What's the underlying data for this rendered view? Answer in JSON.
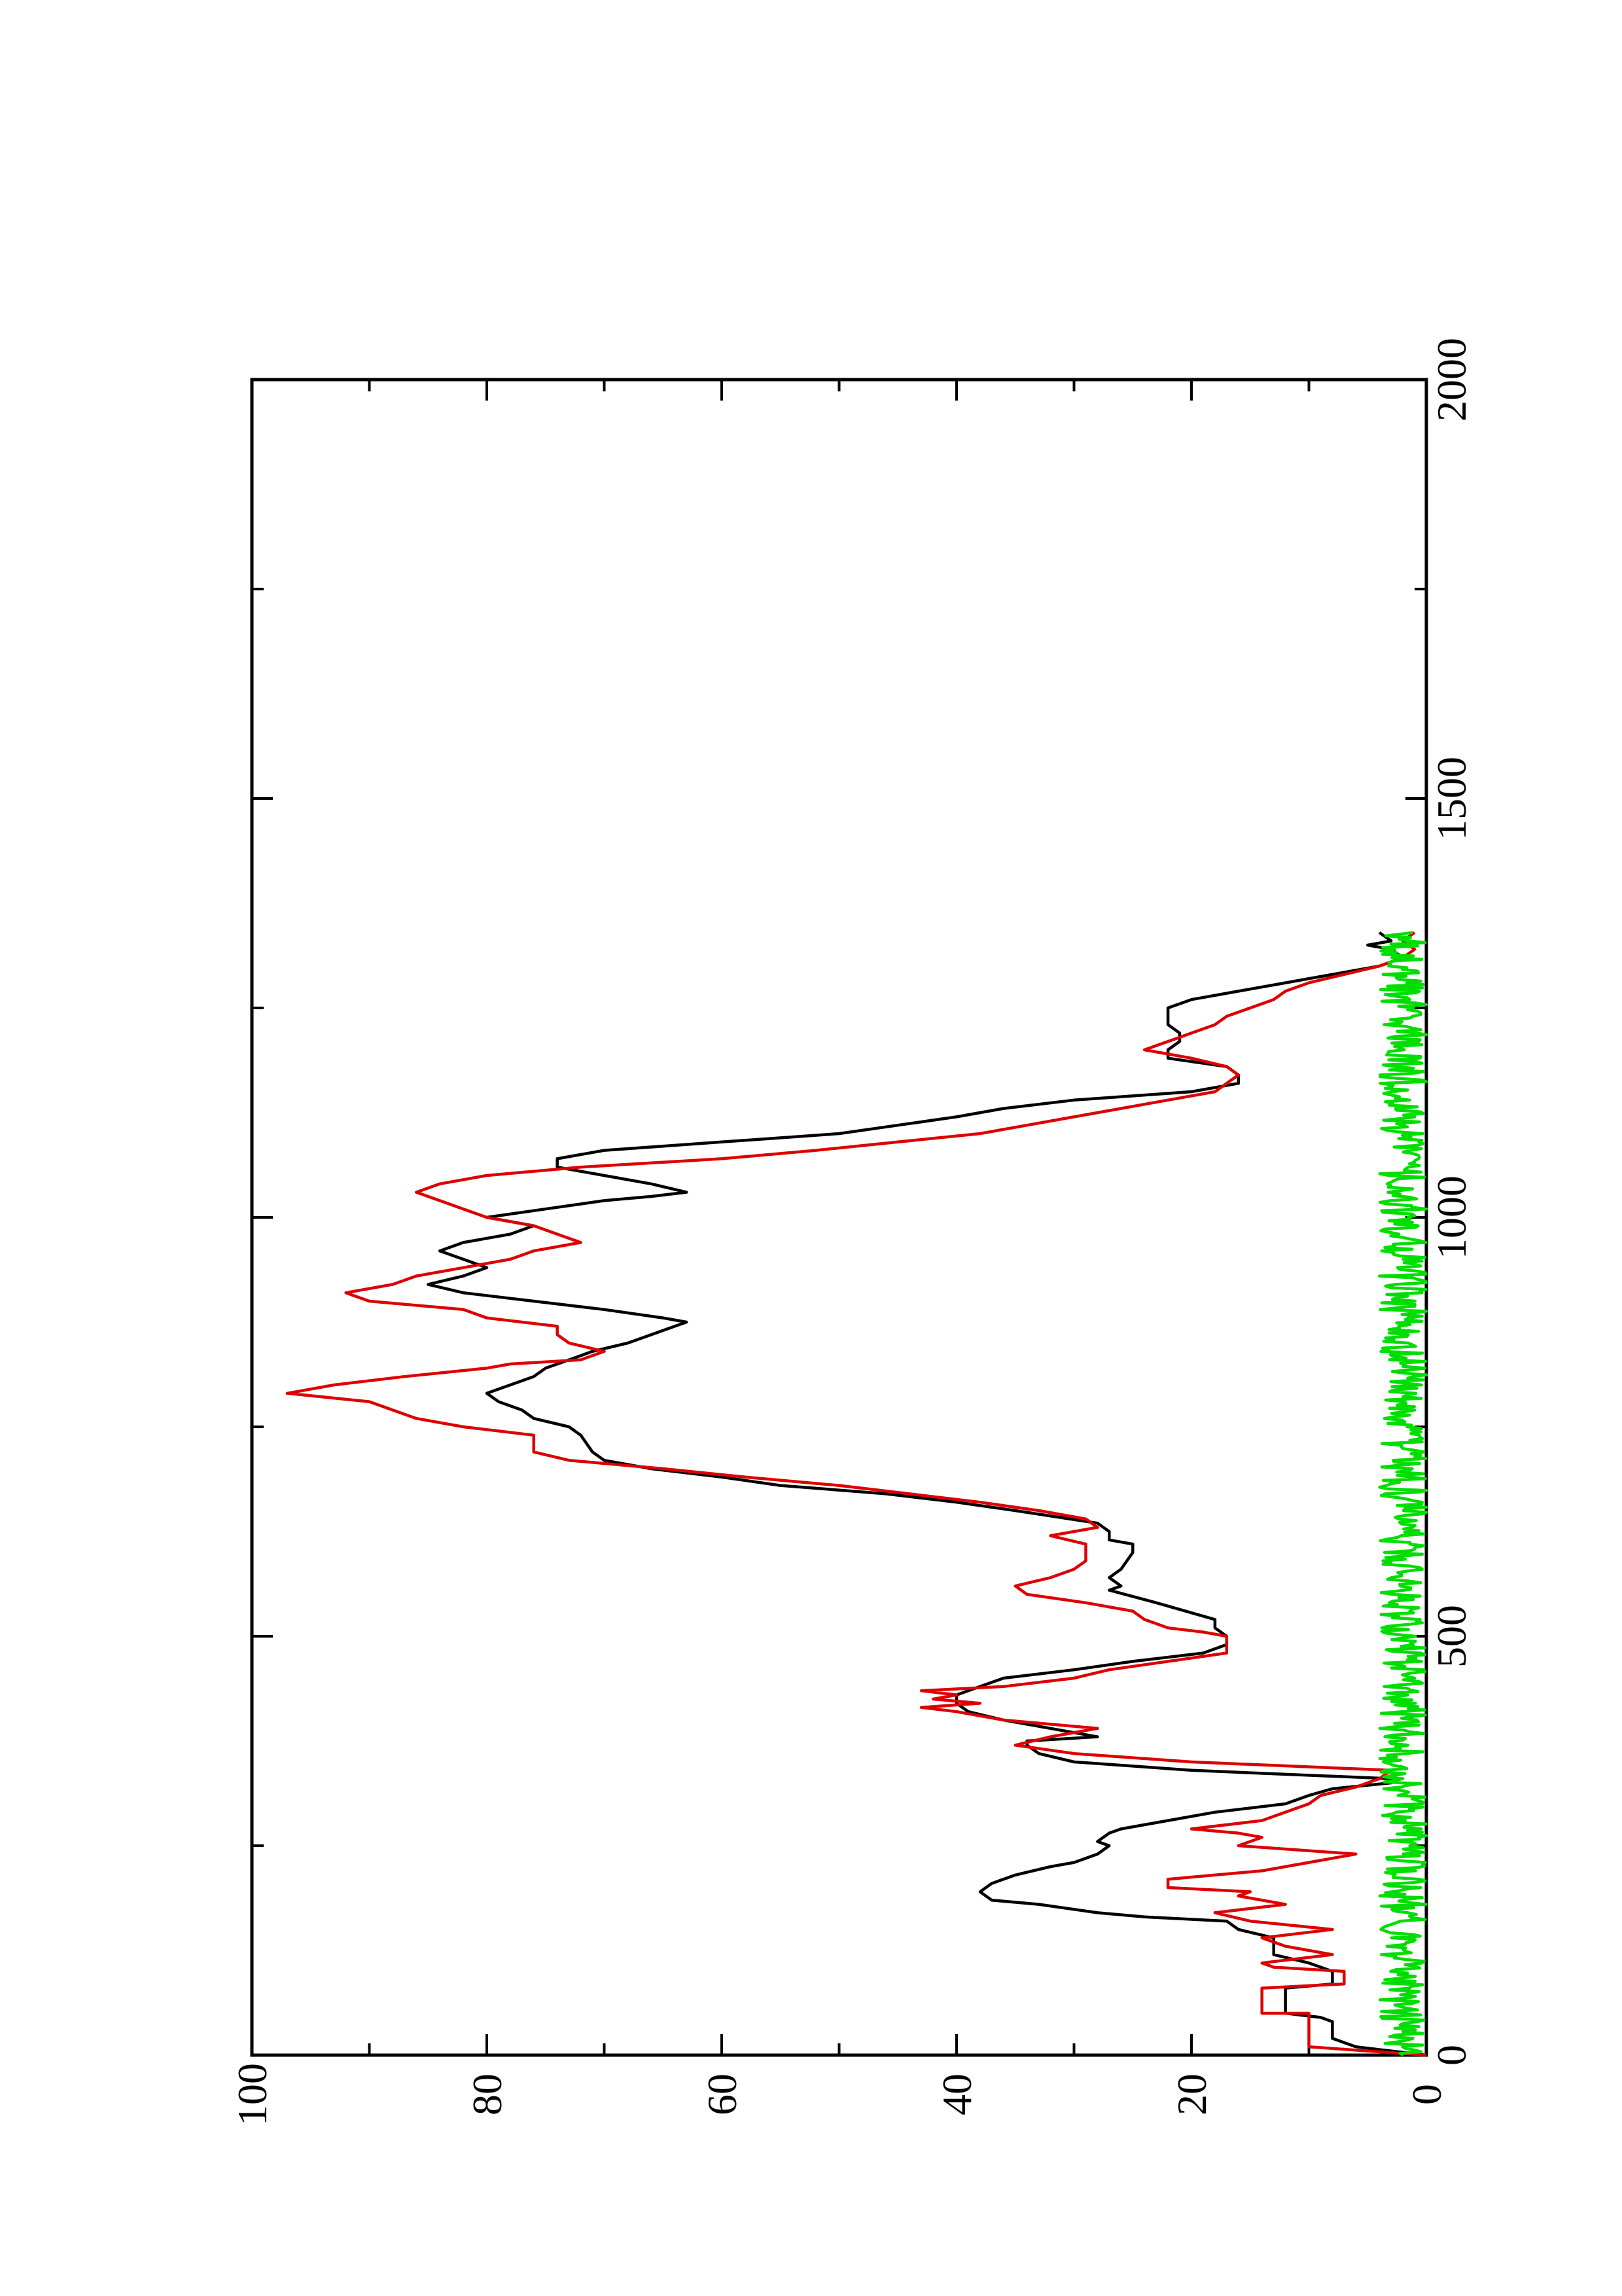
{
  "chart_data": {
    "type": "line",
    "rotation": "figure rotated 90 degrees counter-clockwise on the page",
    "title": "",
    "xlabel": "",
    "ylabel": "",
    "xlim": [
      0,
      2000
    ],
    "ylim": [
      0,
      100
    ],
    "x_ticks": [
      "0",
      "500",
      "1000",
      "1500",
      "2000"
    ],
    "y_ticks": [
      "0",
      "20",
      "40",
      "60",
      "80",
      "100"
    ],
    "grid": false,
    "legend": "none",
    "series": [
      {
        "color": "#000000",
        "points": [
          [
            0,
            0
          ],
          [
            10,
            6
          ],
          [
            20,
            8
          ],
          [
            40,
            8
          ],
          [
            45,
            9
          ],
          [
            50,
            12
          ],
          [
            80,
            12
          ],
          [
            85,
            8
          ],
          [
            100,
            8
          ],
          [
            110,
            10
          ],
          [
            120,
            13
          ],
          [
            140,
            13
          ],
          [
            150,
            16
          ],
          [
            160,
            17
          ],
          [
            165,
            24
          ],
          [
            170,
            28
          ],
          [
            180,
            33
          ],
          [
            185,
            37
          ],
          [
            195,
            38
          ],
          [
            205,
            37
          ],
          [
            215,
            35
          ],
          [
            225,
            32
          ],
          [
            230,
            30
          ],
          [
            240,
            28
          ],
          [
            250,
            27
          ],
          [
            255,
            28
          ],
          [
            265,
            27
          ],
          [
            270,
            26
          ],
          [
            280,
            22
          ],
          [
            290,
            18
          ],
          [
            300,
            12
          ],
          [
            310,
            10
          ],
          [
            318,
            8
          ],
          [
            325,
            3
          ],
          [
            330,
            3
          ],
          [
            340,
            20
          ],
          [
            350,
            30
          ],
          [
            360,
            33
          ],
          [
            370,
            34
          ],
          [
            375,
            34
          ],
          [
            380,
            28
          ],
          [
            390,
            32
          ],
          [
            400,
            36
          ],
          [
            410,
            39
          ],
          [
            420,
            40
          ],
          [
            430,
            40
          ],
          [
            440,
            38
          ],
          [
            450,
            36
          ],
          [
            460,
            30
          ],
          [
            470,
            25
          ],
          [
            480,
            19
          ],
          [
            490,
            17
          ],
          [
            500,
            17
          ],
          [
            510,
            18
          ],
          [
            520,
            18
          ],
          [
            540,
            23
          ],
          [
            555,
            27
          ],
          [
            560,
            26
          ],
          [
            570,
            27
          ],
          [
            580,
            26
          ],
          [
            600,
            25
          ],
          [
            610,
            25
          ],
          [
            615,
            27
          ],
          [
            625,
            27
          ],
          [
            635,
            28
          ],
          [
            650,
            35
          ],
          [
            660,
            40
          ],
          [
            670,
            46
          ],
          [
            680,
            55
          ],
          [
            690,
            60
          ],
          [
            700,
            66
          ],
          [
            710,
            70
          ],
          [
            720,
            71
          ],
          [
            740,
            72
          ],
          [
            750,
            73
          ],
          [
            760,
            76
          ],
          [
            770,
            77
          ],
          [
            780,
            79
          ],
          [
            790,
            80
          ],
          [
            800,
            78
          ],
          [
            810,
            76
          ],
          [
            820,
            75
          ],
          [
            830,
            73
          ],
          [
            840,
            71
          ],
          [
            850,
            68
          ],
          [
            860,
            66
          ],
          [
            870,
            64
          ],
          [
            875,
            63
          ],
          [
            880,
            65
          ],
          [
            890,
            70
          ],
          [
            900,
            76
          ],
          [
            910,
            82
          ],
          [
            920,
            85
          ],
          [
            930,
            82
          ],
          [
            940,
            80
          ],
          [
            950,
            82
          ],
          [
            960,
            84
          ],
          [
            970,
            82
          ],
          [
            980,
            78
          ],
          [
            990,
            76
          ],
          [
            1000,
            80
          ],
          [
            1010,
            75
          ],
          [
            1020,
            70
          ],
          [
            1025,
            66
          ],
          [
            1030,
            63
          ],
          [
            1040,
            66
          ],
          [
            1050,
            70
          ],
          [
            1060,
            74
          ],
          [
            1070,
            74
          ],
          [
            1080,
            70
          ],
          [
            1090,
            60
          ],
          [
            1100,
            50
          ],
          [
            1110,
            45
          ],
          [
            1120,
            40
          ],
          [
            1130,
            36
          ],
          [
            1140,
            30
          ],
          [
            1150,
            20
          ],
          [
            1160,
            16
          ],
          [
            1170,
            16
          ],
          [
            1180,
            17
          ],
          [
            1190,
            22
          ],
          [
            1200,
            22
          ],
          [
            1210,
            21
          ],
          [
            1220,
            21
          ],
          [
            1230,
            22
          ],
          [
            1240,
            22
          ],
          [
            1250,
            22
          ],
          [
            1260,
            20
          ],
          [
            1270,
            16
          ],
          [
            1280,
            12
          ],
          [
            1290,
            8
          ],
          [
            1300,
            4
          ],
          [
            1310,
            2
          ],
          [
            1320,
            3
          ],
          [
            1325,
            5
          ],
          [
            1330,
            3
          ],
          [
            1340,
            4
          ]
        ]
      },
      {
        "color": "#dd0000",
        "points": [
          [
            0,
            0
          ],
          [
            5,
            5
          ],
          [
            10,
            10
          ],
          [
            50,
            10
          ],
          [
            50,
            14
          ],
          [
            80,
            14
          ],
          [
            85,
            7
          ],
          [
            100,
            7
          ],
          [
            105,
            13
          ],
          [
            110,
            14
          ],
          [
            120,
            8
          ],
          [
            130,
            12
          ],
          [
            140,
            14
          ],
          [
            150,
            8
          ],
          [
            160,
            15
          ],
          [
            170,
            18
          ],
          [
            180,
            12
          ],
          [
            190,
            16
          ],
          [
            195,
            15
          ],
          [
            200,
            22
          ],
          [
            210,
            22
          ],
          [
            220,
            14
          ],
          [
            230,
            10
          ],
          [
            240,
            6
          ],
          [
            250,
            16
          ],
          [
            260,
            14
          ],
          [
            265,
            16
          ],
          [
            270,
            20
          ],
          [
            280,
            14
          ],
          [
            290,
            12
          ],
          [
            300,
            10
          ],
          [
            310,
            9
          ],
          [
            320,
            6
          ],
          [
            330,
            4
          ],
          [
            340,
            3
          ],
          [
            350,
            20
          ],
          [
            360,
            30
          ],
          [
            370,
            35
          ],
          [
            380,
            32
          ],
          [
            390,
            28
          ],
          [
            400,
            36
          ],
          [
            410,
            40
          ],
          [
            415,
            43
          ],
          [
            420,
            38
          ],
          [
            425,
            42
          ],
          [
            430,
            40
          ],
          [
            435,
            43
          ],
          [
            440,
            36
          ],
          [
            450,
            30
          ],
          [
            460,
            27
          ],
          [
            470,
            22
          ],
          [
            480,
            17
          ],
          [
            490,
            17
          ],
          [
            500,
            17
          ],
          [
            505,
            19
          ],
          [
            510,
            22
          ],
          [
            520,
            24
          ],
          [
            530,
            25
          ],
          [
            540,
            29
          ],
          [
            550,
            34
          ],
          [
            560,
            35
          ],
          [
            570,
            32
          ],
          [
            580,
            30
          ],
          [
            590,
            29
          ],
          [
            610,
            29
          ],
          [
            620,
            32
          ],
          [
            630,
            28
          ],
          [
            640,
            29
          ],
          [
            650,
            33
          ],
          [
            660,
            38
          ],
          [
            670,
            44
          ],
          [
            680,
            50
          ],
          [
            690,
            58
          ],
          [
            700,
            65
          ],
          [
            710,
            73
          ],
          [
            720,
            76
          ],
          [
            740,
            76
          ],
          [
            750,
            82
          ],
          [
            760,
            86
          ],
          [
            780,
            90
          ],
          [
            790,
            97
          ],
          [
            800,
            93
          ],
          [
            810,
            87
          ],
          [
            820,
            80
          ],
          [
            825,
            78
          ],
          [
            830,
            72
          ],
          [
            840,
            70
          ],
          [
            850,
            73
          ],
          [
            860,
            74
          ],
          [
            870,
            74
          ],
          [
            880,
            80
          ],
          [
            890,
            82
          ],
          [
            900,
            90
          ],
          [
            910,
            92
          ],
          [
            920,
            88
          ],
          [
            930,
            86
          ],
          [
            940,
            82
          ],
          [
            950,
            78
          ],
          [
            960,
            76
          ],
          [
            970,
            72
          ],
          [
            980,
            74
          ],
          [
            990,
            76
          ],
          [
            1000,
            80
          ],
          [
            1010,
            82
          ],
          [
            1020,
            84
          ],
          [
            1030,
            86
          ],
          [
            1040,
            84
          ],
          [
            1050,
            80
          ],
          [
            1060,
            72
          ],
          [
            1070,
            60
          ],
          [
            1080,
            52
          ],
          [
            1090,
            45
          ],
          [
            1100,
            38
          ],
          [
            1110,
            34
          ],
          [
            1120,
            30
          ],
          [
            1130,
            26
          ],
          [
            1140,
            22
          ],
          [
            1150,
            18
          ],
          [
            1160,
            17
          ],
          [
            1170,
            16
          ],
          [
            1180,
            17
          ],
          [
            1190,
            20
          ],
          [
            1200,
            24
          ],
          [
            1210,
            22
          ],
          [
            1220,
            20
          ],
          [
            1230,
            18
          ],
          [
            1240,
            17
          ],
          [
            1250,
            15
          ],
          [
            1260,
            13
          ],
          [
            1270,
            12
          ],
          [
            1280,
            10
          ],
          [
            1290,
            7
          ],
          [
            1300,
            4
          ],
          [
            1310,
            2
          ],
          [
            1320,
            1
          ],
          [
            1330,
            2
          ],
          [
            1340,
            1
          ]
        ]
      },
      {
        "color": "#00dd00",
        "noise": [
          0,
          4
        ],
        "x_range": [
          0,
          1340
        ]
      }
    ]
  }
}
